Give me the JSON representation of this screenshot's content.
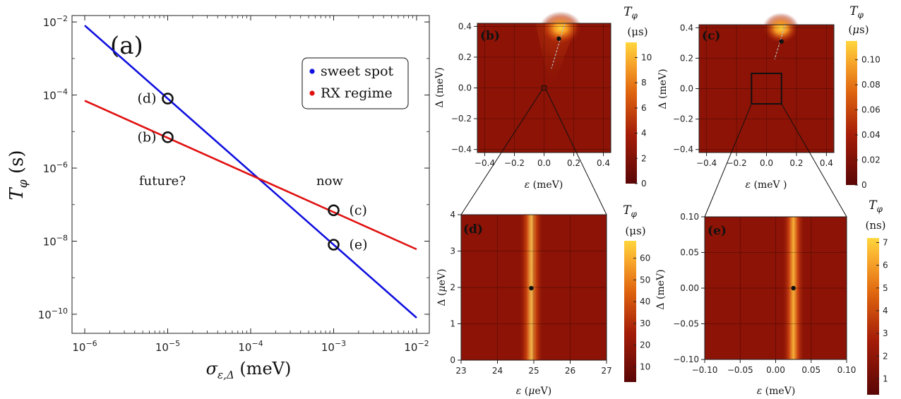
{
  "chart_data": [
    {
      "type": "line",
      "panel_label": "(a)",
      "xlabel": "σ_{ε,Δ} (meV)",
      "ylabel": "T_φ (s)",
      "xscale": "log",
      "yscale": "log",
      "xlim": [
        1e-06,
        0.01
      ],
      "ylim": [
        3e-11,
        0.015
      ],
      "x_ticks": [
        "10^-6",
        "10^-5",
        "10^-4",
        "10^-3",
        "10^-2"
      ],
      "y_ticks": [
        "10^-2",
        "10^-4",
        "10^-6",
        "10^-8",
        "10^-10"
      ],
      "legend_position": "top-right",
      "grid": false,
      "series": [
        {
          "name": "sweet spot",
          "color": "#1010e0",
          "x": [
            1e-06,
            0.01
          ],
          "y": [
            0.008,
            8e-11
          ]
        },
        {
          "name": "RX regime",
          "color": "#e01010",
          "x": [
            1e-06,
            0.01
          ],
          "y": [
            7e-05,
            6e-09
          ]
        }
      ],
      "markers": [
        {
          "label": "(d)",
          "x": 1e-05,
          "y": 8e-05
        },
        {
          "label": "(b)",
          "x": 1e-05,
          "y": 7e-06
        },
        {
          "label": "(c)",
          "x": 0.001,
          "y": 7e-08
        },
        {
          "label": "(e)",
          "x": 0.001,
          "y": 8e-09
        }
      ],
      "annotations": [
        "future?",
        "now"
      ]
    },
    {
      "type": "heatmap",
      "panel_label": "(b)",
      "xlabel": "ε (meV)",
      "ylabel": "Δ (meV)",
      "xlim": [
        -0.45,
        0.45
      ],
      "ylim": [
        -0.42,
        0.42
      ],
      "x_ticks": [
        "-0.4",
        "-0.2",
        "0.0",
        "0.2",
        "0.4"
      ],
      "y_ticks": [
        "-0.4",
        "-0.2",
        "0.0",
        "0.2",
        "0.4"
      ],
      "colorbar_label": "T_φ",
      "colorbar_unit": "(μs)",
      "colorbar_ticks": [
        "0",
        "2",
        "4",
        "6",
        "8",
        "10"
      ],
      "colorbar_range": [
        0,
        11.2
      ],
      "peak_point": {
        "x": 0.1,
        "y": 0.32
      },
      "zoom_box": {
        "x": [
          -0.01,
          0.01
        ],
        "y": [
          -0.01,
          0.01
        ]
      }
    },
    {
      "type": "heatmap",
      "panel_label": "(c)",
      "xlabel": "ε (meV)",
      "ylabel": "Δ (meV)",
      "xlim": [
        -0.45,
        0.45
      ],
      "ylim": [
        -0.42,
        0.42
      ],
      "x_ticks": [
        "-0.4",
        "-0.2",
        "0.0",
        "0.2",
        "0.4"
      ],
      "y_ticks": [
        "-0.4",
        "-0.2",
        "0.0",
        "0.2",
        "0.4"
      ],
      "colorbar_label": "T_φ",
      "colorbar_unit": "(μs)",
      "colorbar_ticks": [
        "0",
        "0.02",
        "0.04",
        "0.06",
        "0.08",
        "0.10"
      ],
      "colorbar_range": [
        0,
        0.115
      ],
      "peak_point": {
        "x": 0.1,
        "y": 0.31
      },
      "zoom_box": {
        "x": [
          -0.1,
          0.1
        ],
        "y": [
          -0.1,
          0.1
        ]
      }
    },
    {
      "type": "heatmap",
      "panel_label": "(d)",
      "xlabel": "ε (μeV)",
      "ylabel": "Δ (μeV)",
      "xlim": [
        23,
        27
      ],
      "ylim": [
        0,
        4
      ],
      "x_ticks": [
        "23",
        "24",
        "25",
        "26",
        "27"
      ],
      "y_ticks": [
        "0",
        "1",
        "2",
        "3",
        "4"
      ],
      "colorbar_label": "T_φ",
      "colorbar_unit": "(μs)",
      "colorbar_ticks": [
        "10",
        "20",
        "30",
        "40",
        "50",
        "60"
      ],
      "colorbar_range": [
        3,
        68
      ],
      "peak_point": {
        "x": 24.93,
        "y": 1.98
      }
    },
    {
      "type": "heatmap",
      "panel_label": "(e)",
      "xlabel": "ε (meV)",
      "ylabel": "Δ (meV)",
      "xlim": [
        -0.1,
        0.1
      ],
      "ylim": [
        -0.1,
        0.1
      ],
      "x_ticks": [
        "-0.10",
        "-0.05",
        "0.00",
        "0.05",
        "0.10"
      ],
      "y_ticks": [
        "-0.10",
        "-0.05",
        "0.00",
        "0.05",
        "0.10"
      ],
      "colorbar_label": "T_φ",
      "colorbar_unit": "(ns)",
      "colorbar_ticks": [
        "1",
        "2",
        "3",
        "4",
        "5",
        "6",
        "7"
      ],
      "colorbar_range": [
        0.3,
        7.2
      ],
      "peak_point": {
        "x": 0.025,
        "y": 0.0
      }
    }
  ]
}
